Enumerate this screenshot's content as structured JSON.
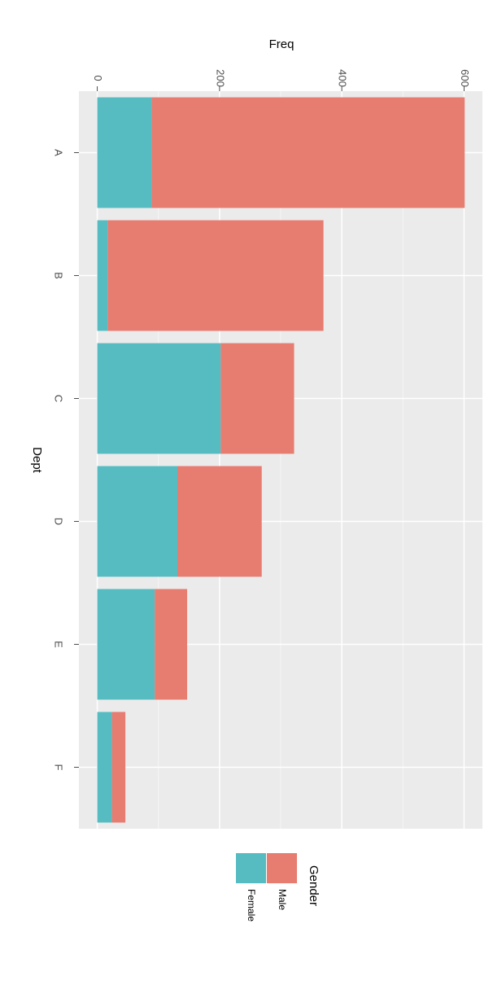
{
  "chart_data": {
    "type": "bar",
    "stacked": true,
    "categories": [
      "A",
      "B",
      "C",
      "D",
      "E",
      "F"
    ],
    "series": [
      {
        "name": "Female",
        "color": "#56bcc2",
        "values": [
          89,
          17,
          202,
          131,
          94,
          24
        ]
      },
      {
        "name": "Male",
        "color": "#e77c70",
        "values": [
          512,
          353,
          120,
          138,
          53,
          22
        ]
      }
    ],
    "xlabel": "Dept",
    "ylabel": "Freq",
    "legend_title": "Gender",
    "ylim": [
      -30,
      630
    ],
    "yticks": [
      0,
      200,
      400,
      600
    ],
    "grid": true
  }
}
